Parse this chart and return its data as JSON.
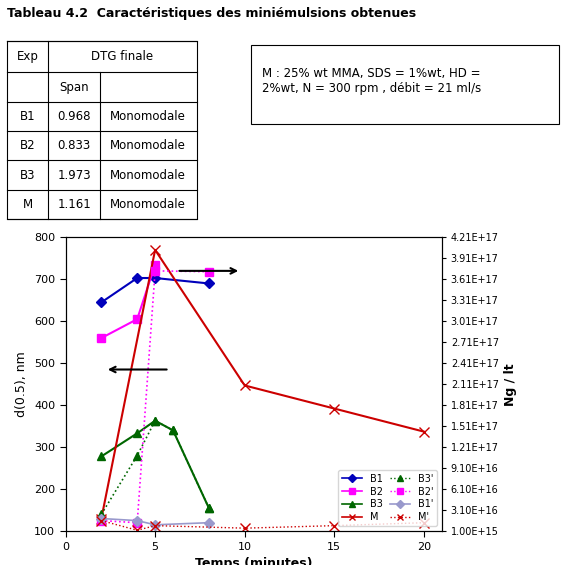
{
  "title": "Tableau 4.2  Caractéristiques des miniémulsions obtenues",
  "table_rows": [
    [
      "B1",
      "0.968",
      "Monomodale"
    ],
    [
      "B2",
      "0.833",
      "Monomodale"
    ],
    [
      "B3",
      "1.973",
      "Monomodale"
    ],
    [
      "M",
      "1.161",
      "Monomodale"
    ]
  ],
  "note_text": "M : 25% wt MMA, SDS = 1%wt, HD =\n2%wt, N = 300 rpm , débit = 21 ml/s",
  "xlabel": "Temps (minutes)",
  "ylabel_left": "d(0.5), nm",
  "ylabel_right": "Ng / lt",
  "xlim": [
    0,
    21
  ],
  "ylim_left": [
    100,
    800
  ],
  "yticks_left": [
    100,
    200,
    300,
    400,
    500,
    600,
    700,
    800
  ],
  "yticks_right_labels": [
    "1.00E+15",
    "3.10E+16",
    "6.10E+16",
    "9.10E+16",
    "1.21E+17",
    "1.51E+17",
    "1.81E+17",
    "2.11E+17",
    "2.41E+17",
    "2.71E+17",
    "3.01E+17",
    "3.31E+17",
    "3.61E+17",
    "3.91E+17",
    "4.21E+17"
  ],
  "yticks_right_values": [
    1000000000000000.0,
    3.1e+16,
    6.1e+16,
    9.1e+16,
    1.21e+17,
    1.51e+17,
    1.81e+17,
    2.11e+17,
    2.41e+17,
    2.71e+17,
    3.01e+17,
    3.31e+17,
    3.61e+17,
    3.91e+17,
    4.21e+17
  ],
  "ylim_right": [
    1000000000000000.0,
    4.21e+17
  ],
  "xticks": [
    0,
    5,
    10,
    15,
    20
  ],
  "series": {
    "B1": {
      "x": [
        2,
        4,
        5,
        8
      ],
      "y": [
        645,
        703,
        703,
        690
      ],
      "color": "#0000bb",
      "linestyle": "solid",
      "marker": "D",
      "markersize": 5,
      "linewidth": 1.5,
      "axis": "left"
    },
    "B2": {
      "x": [
        2,
        4,
        5
      ],
      "y": [
        560,
        605,
        735
      ],
      "color": "#ff00ff",
      "linestyle": "solid",
      "marker": "s",
      "markersize": 6,
      "linewidth": 1.5,
      "axis": "left"
    },
    "B3": {
      "x": [
        2,
        4,
        5,
        6,
        8
      ],
      "y": [
        278,
        333,
        363,
        340,
        155
      ],
      "color": "#006600",
      "linestyle": "solid",
      "marker": "^",
      "markersize": 6,
      "linewidth": 1.5,
      "axis": "left"
    },
    "M": {
      "x": [
        2,
        5,
        10,
        15,
        20
      ],
      "y": [
        130,
        770,
        447,
        392,
        337
      ],
      "color": "#cc0000",
      "linestyle": "solid",
      "marker": "x",
      "markersize": 7,
      "linewidth": 1.5,
      "axis": "left"
    },
    "B3p": {
      "x": [
        2,
        4,
        5,
        6,
        8
      ],
      "y": [
        140,
        280,
        363,
        340,
        155
      ],
      "color": "#006600",
      "linestyle": "dotted",
      "marker": "^",
      "markersize": 6,
      "linewidth": 1.2,
      "axis": "left"
    },
    "B2p": {
      "x": [
        2,
        4,
        5,
        8
      ],
      "y": [
        125,
        120,
        720,
        718
      ],
      "color": "#ff00ff",
      "linestyle": "dotted",
      "marker": "s",
      "markersize": 6,
      "linewidth": 1.2,
      "axis": "left"
    },
    "B1p": {
      "x": [
        2,
        4,
        5,
        8
      ],
      "y": [
        130,
        125,
        115,
        120
      ],
      "color": "#9999cc",
      "linestyle": "solid",
      "marker": "D",
      "markersize": 5,
      "linewidth": 1.2,
      "axis": "left"
    },
    "Mp": {
      "x": [
        2,
        4,
        5,
        10,
        15,
        20
      ],
      "y": [
        125,
        102,
        113,
        107,
        113,
        120
      ],
      "color": "#cc0000",
      "linestyle": "dotted",
      "marker": "x",
      "markersize": 7,
      "linewidth": 1.0,
      "axis": "left"
    }
  },
  "background_color": "#ffffff"
}
